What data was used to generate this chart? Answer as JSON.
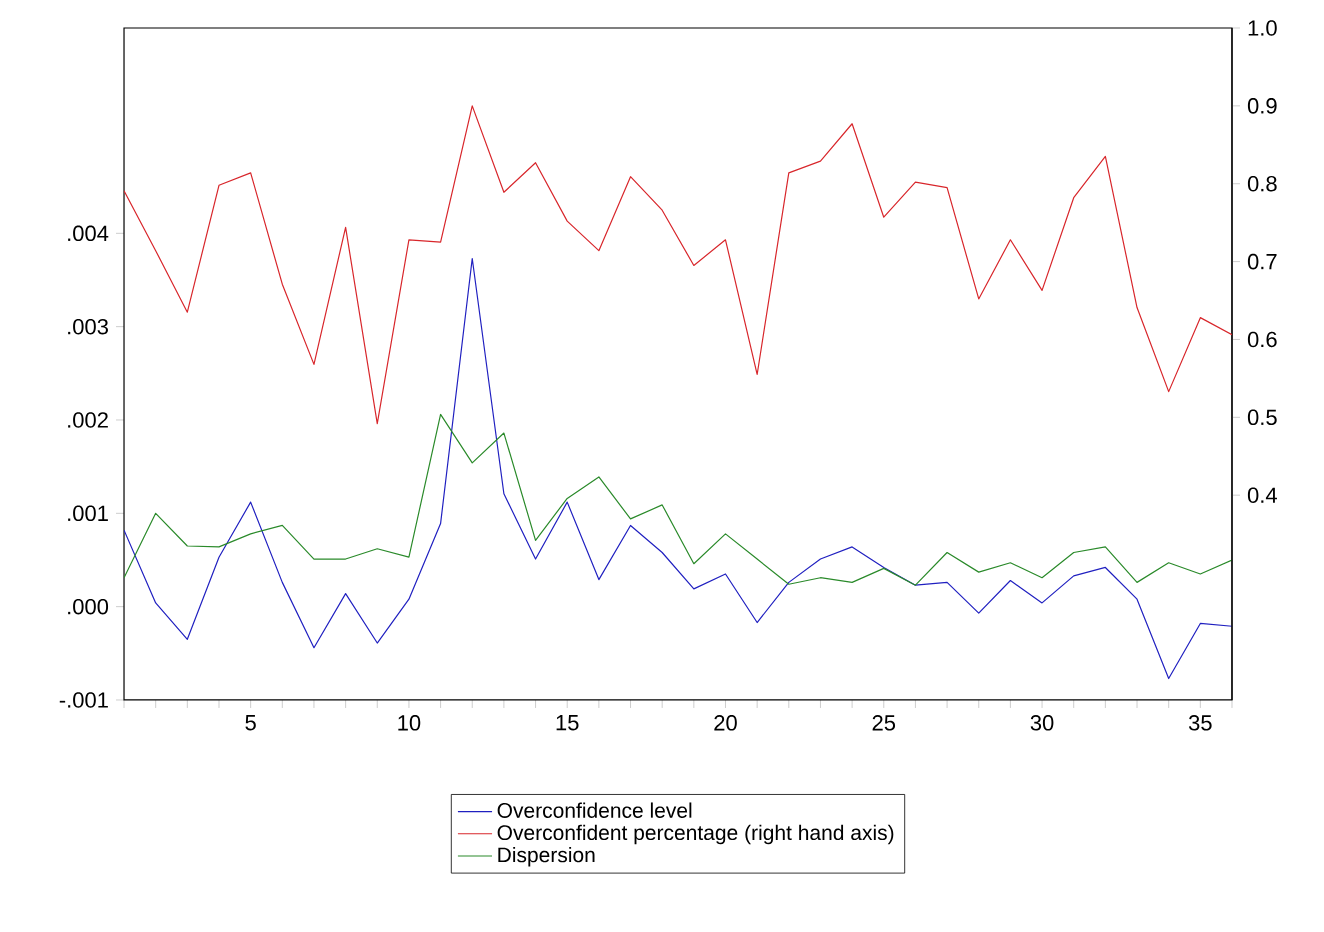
{
  "chart_data": {
    "type": "line",
    "x": [
      1,
      2,
      3,
      4,
      5,
      6,
      7,
      8,
      9,
      10,
      11,
      12,
      13,
      14,
      15,
      16,
      17,
      18,
      19,
      20,
      21,
      22,
      23,
      24,
      25,
      26,
      27,
      28,
      29,
      30,
      31,
      32,
      33,
      34,
      35,
      36
    ],
    "series": [
      {
        "name": "Overconfidence level",
        "color": "#2020c0",
        "values": [
          0.00082,
          4e-05,
          -0.00035,
          0.00053,
          0.00112,
          0.00026,
          -0.00044,
          0.00014,
          -0.00039,
          8e-05,
          0.00089,
          0.00373,
          0.00121,
          0.00051,
          0.00112,
          0.00029,
          0.00087,
          0.00058,
          0.00019,
          0.00035,
          -0.00017,
          0.00026,
          0.00051,
          0.00064,
          0.00042,
          0.00023,
          0.00026,
          -7e-05,
          0.00028,
          4e-05,
          0.00033,
          0.00042,
          8e-05,
          -0.00077,
          -0.00018,
          -0.00021
        ]
      },
      {
        "name": "Overconfident percentage (right hand axis)",
        "color": "#d8262b",
        "axis": "y2",
        "values": [
          0.791,
          0.714,
          0.635,
          0.798,
          0.814,
          0.671,
          0.568,
          0.744,
          0.492,
          0.728,
          0.725,
          0.9,
          0.789,
          0.827,
          0.752,
          0.714,
          0.809,
          0.766,
          0.695,
          0.728,
          0.555,
          0.814,
          0.829,
          0.877,
          0.757,
          0.802,
          0.795,
          0.652,
          0.728,
          0.663,
          0.782,
          0.835,
          0.641,
          0.533,
          0.628,
          0.606
        ]
      },
      {
        "name": "Dispersion",
        "color": "#2a8a2a",
        "values": [
          0.00031,
          0.001,
          0.00065,
          0.00064,
          0.00078,
          0.00087,
          0.00051,
          0.00051,
          0.00062,
          0.00053,
          0.00206,
          0.00154,
          0.00186,
          0.00071,
          0.00116,
          0.00139,
          0.00094,
          0.00109,
          0.00046,
          0.00078,
          0.00051,
          0.00024,
          0.00031,
          0.00026,
          0.00041,
          0.00023,
          0.00058,
          0.00037,
          0.00047,
          0.00031,
          0.00058,
          0.00064,
          0.00026,
          0.00047,
          0.00035,
          0.0005
        ]
      }
    ],
    "xlim": [
      1,
      36
    ],
    "xticks": [
      {
        "value": 1,
        "label": null
      },
      {
        "value": 2,
        "label": null
      },
      {
        "value": 3,
        "label": null
      },
      {
        "value": 4,
        "label": null
      },
      5,
      {
        "value": 6,
        "label": null
      },
      {
        "value": 7,
        "label": null
      },
      {
        "value": 8,
        "label": null
      },
      {
        "value": 9,
        "label": null
      },
      10,
      {
        "value": 11,
        "label": null
      },
      {
        "value": 12,
        "label": null
      },
      {
        "value": 13,
        "label": null
      },
      {
        "value": 14,
        "label": null
      },
      15,
      {
        "value": 16,
        "label": null
      },
      {
        "value": 17,
        "label": null
      },
      {
        "value": 18,
        "label": null
      },
      {
        "value": 19,
        "label": null
      },
      20,
      {
        "value": 21,
        "label": null
      },
      {
        "value": 22,
        "label": null
      },
      {
        "value": 23,
        "label": null
      },
      {
        "value": 24,
        "label": null
      },
      25,
      {
        "value": 26,
        "label": null
      },
      {
        "value": 27,
        "label": null
      },
      {
        "value": 28,
        "label": null
      },
      {
        "value": 29,
        "label": null
      },
      30,
      {
        "value": 31,
        "label": null
      },
      {
        "value": 32,
        "label": null
      },
      {
        "value": 33,
        "label": null
      },
      {
        "value": 34,
        "label": null
      },
      35,
      {
        "value": 36,
        "label": null
      }
    ],
    "ylim": [
      -0.001,
      0.0062
    ],
    "yticks": [
      {
        "value": -0.001,
        "label": "-.001"
      },
      {
        "value": 0,
        "label": ".000"
      },
      {
        "value": 0.001,
        "label": ".001"
      },
      {
        "value": 0.002,
        "label": ".002"
      },
      {
        "value": 0.003,
        "label": ".003"
      },
      {
        "value": 0.004,
        "label": ".004"
      }
    ],
    "y2lim": [
      0.137,
      1.0
    ],
    "y2ticks": [
      0.4,
      0.5,
      0.6,
      0.7,
      0.8,
      0.9,
      {
        "value": 1.0,
        "label": "1.0"
      }
    ],
    "legend": "bottom"
  }
}
